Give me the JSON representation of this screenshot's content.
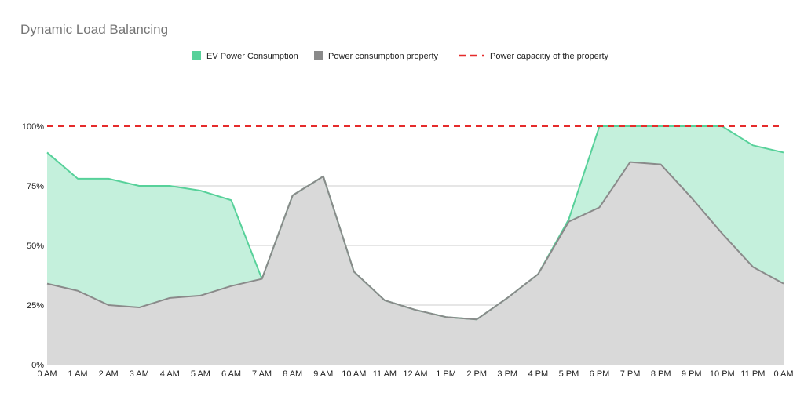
{
  "chart_data": {
    "type": "area",
    "title": "Dynamic Load Balancing",
    "xlabel": "",
    "ylabel": "",
    "ylim": [
      0,
      100
    ],
    "y_ticks": [
      "0%",
      "25%",
      "50%",
      "75%",
      "100%"
    ],
    "y_tick_values": [
      0,
      25,
      50,
      75,
      100
    ],
    "grid": true,
    "legend_position": "top",
    "categories": [
      "0 AM",
      "1 AM",
      "2 AM",
      "3 AM",
      "4 AM",
      "5 AM",
      "6 AM",
      "7 AM",
      "8 AM",
      "9 AM",
      "10 AM",
      "11 AM",
      "12 AM",
      "1 PM",
      "2 PM",
      "3 PM",
      "4 PM",
      "5 PM",
      "6 PM",
      "7 PM",
      "8 PM",
      "9 PM",
      "10 PM",
      "11 PM",
      "0 AM"
    ],
    "series": [
      {
        "name": "EV Power Consumption",
        "type": "area",
        "color": "#57d19a",
        "fill": "#c4f0dc",
        "values": [
          89,
          78,
          78,
          75,
          75,
          73,
          69,
          36,
          71,
          79,
          39,
          27,
          23,
          20,
          19,
          28,
          38,
          61,
          100,
          100,
          100,
          100,
          100,
          92,
          89
        ]
      },
      {
        "name": "Power consumption property",
        "type": "area",
        "color": "#8a8a8a",
        "fill": "#d9d9d9",
        "values": [
          34,
          31,
          25,
          24,
          28,
          29,
          33,
          36,
          71,
          79,
          39,
          27,
          23,
          20,
          19,
          28,
          38,
          60,
          66,
          85,
          84,
          70,
          55,
          41,
          34
        ]
      },
      {
        "name": "Power capacitiy of the property",
        "type": "line",
        "style": "dashed",
        "color": "#e52b2b",
        "values": [
          100,
          100,
          100,
          100,
          100,
          100,
          100,
          100,
          100,
          100,
          100,
          100,
          100,
          100,
          100,
          100,
          100,
          100,
          100,
          100,
          100,
          100,
          100,
          100,
          100
        ]
      }
    ]
  }
}
